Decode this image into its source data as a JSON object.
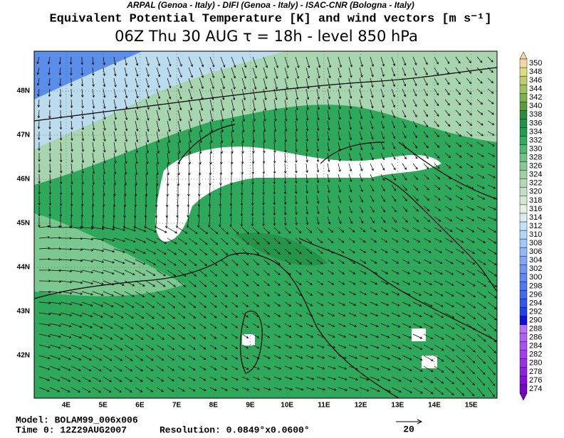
{
  "header": {
    "institutions": "ARPAL (Genoa - Italy)  -  DIFI (Genoa - Italy)  -  ISAC-CNR (Bologna - Italy)",
    "title": "Equivalent Potential Temperature [K] and wind vectors [m s⁻¹]",
    "subtitle": "06Z Thu 30 AUG  τ = 18h  -  level 850 hPa"
  },
  "map": {
    "lon_labels": [
      "4E",
      "5E",
      "6E",
      "7E",
      "8E",
      "9E",
      "10E",
      "11E",
      "12E",
      "13E",
      "14E",
      "15E"
    ],
    "lat_labels": [
      "48N",
      "47N",
      "46N",
      "45N",
      "44N",
      "43N",
      "42N"
    ]
  },
  "colorbar": {
    "levels": [
      274,
      276,
      278,
      280,
      282,
      284,
      286,
      288,
      290,
      292,
      294,
      296,
      298,
      300,
      302,
      304,
      306,
      308,
      310,
      312,
      314,
      316,
      318,
      320,
      322,
      324,
      326,
      328,
      330,
      332,
      334,
      336,
      338,
      340,
      342,
      344,
      346,
      348,
      350
    ],
    "colors": [
      "#7a00cc",
      "#8410d6",
      "#8e20de",
      "#9830e6",
      "#a040ec",
      "#a850f0",
      "#b060f4",
      "#b870f8",
      "#1010e0",
      "#2040ee",
      "#3058f0",
      "#4068f0",
      "#5078f0",
      "#6088f2",
      "#7098f2",
      "#80a8f4",
      "#90b8f6",
      "#a0c8f8",
      "#b0d6f8",
      "#c4e2f6",
      "#dcecec",
      "#e4f0e0",
      "#d4e8d4",
      "#c4e0c6",
      "#b2d8b8",
      "#a0d0a8",
      "#88c898",
      "#70c088",
      "#50b870",
      "#34ac60",
      "#229c50",
      "#1e9448",
      "#2e8c40",
      "#5c9c40",
      "#80b050",
      "#a0c060",
      "#c0cc70",
      "#dcdc80",
      "#f0d8a0"
    ]
  },
  "footer": {
    "model": "Model: BOLAM99_006x006",
    "time": "Time 0: 12Z29AUG2007",
    "resolution": "Resolution: 0.0849°x0.0600°",
    "reference_vector": "20"
  }
}
